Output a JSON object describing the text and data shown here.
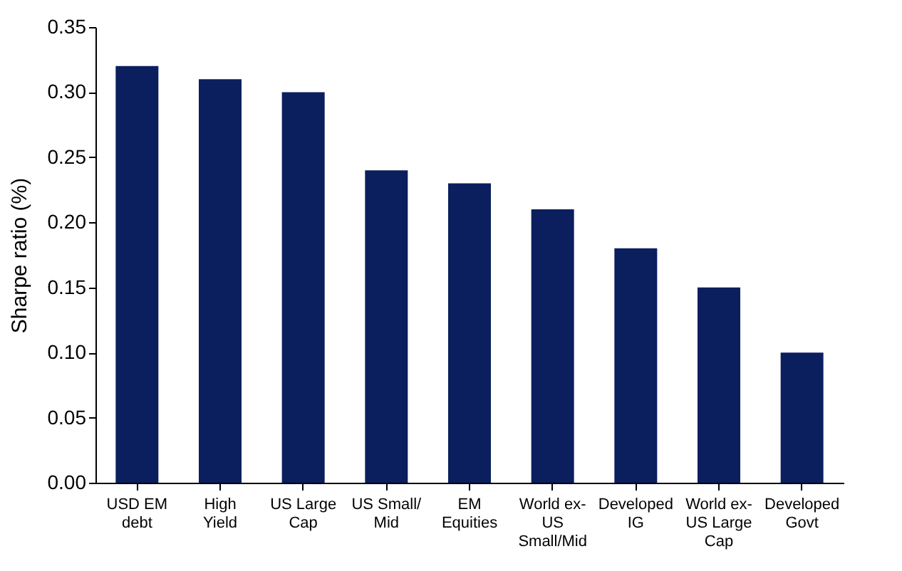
{
  "chart_data": {
    "type": "bar",
    "ylabel": "Sharpe ratio (%)",
    "categories": [
      "USD EM debt",
      "High Yield",
      "US Large Cap",
      "US Small/ Mid",
      "EM Equities",
      "World ex-US Small/Mid",
      "Developed IG",
      "World ex-US Large Cap",
      "Developed Govt"
    ],
    "values": [
      0.32,
      0.31,
      0.3,
      0.24,
      0.23,
      0.21,
      0.18,
      0.15,
      0.1
    ],
    "color": "#0b1f5e",
    "ylim": [
      0,
      0.35
    ],
    "yticks": [
      {
        "value": 0,
        "label": "0.00"
      },
      {
        "value": 0.05,
        "label": "0.05"
      },
      {
        "value": 0.1,
        "label": "0.10"
      },
      {
        "value": 0.15,
        "label": "0.15"
      },
      {
        "value": 0.2,
        "label": "0.20"
      },
      {
        "value": 0.25,
        "label": "0.25"
      },
      {
        "value": 0.3,
        "label": "0.30"
      },
      {
        "value": 0.35,
        "label": "0.35"
      }
    ],
    "grid": false
  }
}
